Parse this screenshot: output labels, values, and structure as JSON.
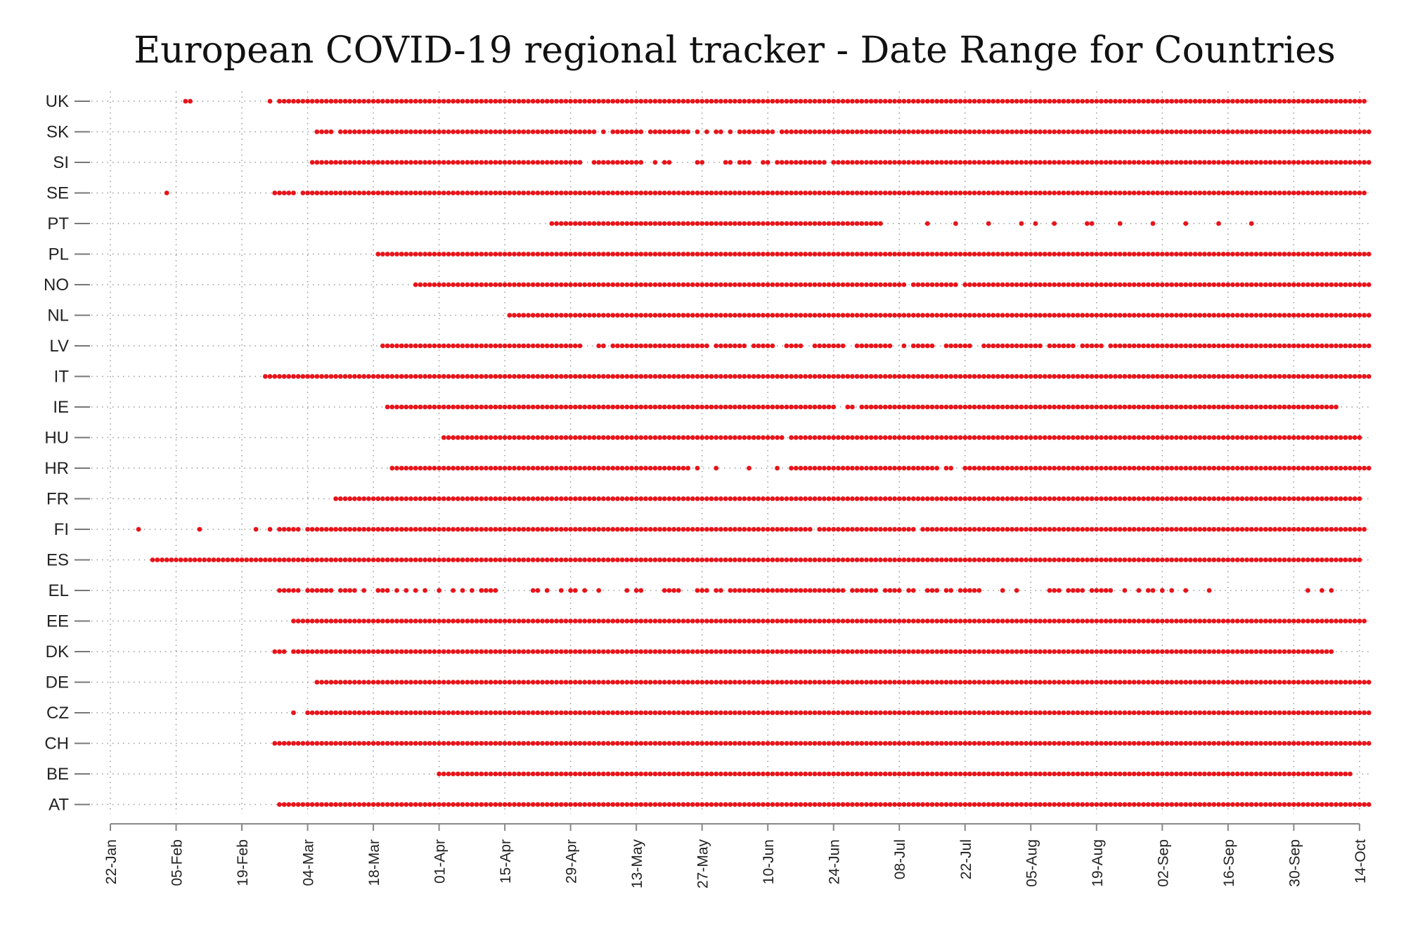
{
  "chart_data": {
    "type": "scatter",
    "title": "European COVID-19 regional tracker - Date Range for Countries",
    "xlabel": "",
    "ylabel": "",
    "x_axis": {
      "type": "date",
      "min": "2020-01-22",
      "max": "2020-10-14",
      "ticks": [
        "22-Jan",
        "05-Feb",
        "19-Feb",
        "04-Mar",
        "18-Mar",
        "01-Apr",
        "15-Apr",
        "29-Apr",
        "13-May",
        "27-May",
        "10-Jun",
        "24-Jun",
        "08-Jul",
        "22-Jul",
        "05-Aug",
        "19-Aug",
        "02-Sep",
        "16-Sep",
        "30-Sep",
        "14-Oct"
      ]
    },
    "grid": "dotted",
    "marker_color": "#e8141a",
    "categories": [
      "UK",
      "SK",
      "SI",
      "SE",
      "PT",
      "PL",
      "NO",
      "NL",
      "LV",
      "IT",
      "IE",
      "HU",
      "HR",
      "FR",
      "FI",
      "ES",
      "EL",
      "EE",
      "DK",
      "DE",
      "CZ",
      "CH",
      "BE",
      "AT"
    ],
    "series": [
      {
        "country": "UK",
        "ranges": [
          [
            "2020-02-07",
            "2020-02-08"
          ],
          [
            "2020-02-25",
            "2020-02-25"
          ],
          [
            "2020-02-27",
            "2020-10-15"
          ]
        ]
      },
      {
        "country": "SK",
        "ranges": [
          [
            "2020-03-06",
            "2020-03-09"
          ],
          [
            "2020-03-11",
            "2020-05-04"
          ],
          [
            "2020-05-06",
            "2020-05-06"
          ],
          [
            "2020-05-08",
            "2020-05-14"
          ],
          [
            "2020-05-16",
            "2020-05-24"
          ],
          [
            "2020-05-26",
            "2020-05-26"
          ],
          [
            "2020-05-28",
            "2020-05-28"
          ],
          [
            "2020-05-30",
            "2020-05-31"
          ],
          [
            "2020-06-02",
            "2020-06-02"
          ],
          [
            "2020-06-04",
            "2020-06-11"
          ],
          [
            "2020-06-13",
            "2020-10-16"
          ]
        ]
      },
      {
        "country": "SI",
        "ranges": [
          [
            "2020-03-05",
            "2020-05-01"
          ],
          [
            "2020-05-04",
            "2020-05-14"
          ],
          [
            "2020-05-17",
            "2020-05-17"
          ],
          [
            "2020-05-19",
            "2020-05-20"
          ],
          [
            "2020-05-26",
            "2020-05-27"
          ],
          [
            "2020-06-01",
            "2020-06-02"
          ],
          [
            "2020-06-04",
            "2020-06-06"
          ],
          [
            "2020-06-09",
            "2020-06-10"
          ],
          [
            "2020-06-12",
            "2020-06-22"
          ],
          [
            "2020-06-24",
            "2020-10-16"
          ]
        ]
      },
      {
        "country": "SE",
        "ranges": [
          [
            "2020-02-03",
            "2020-02-03"
          ],
          [
            "2020-02-26",
            "2020-03-01"
          ],
          [
            "2020-03-03",
            "2020-10-15"
          ]
        ]
      },
      {
        "country": "PT",
        "ranges": [
          [
            "2020-04-25",
            "2020-07-04"
          ],
          [
            "2020-07-14",
            "2020-07-14"
          ],
          [
            "2020-07-20",
            "2020-07-20"
          ],
          [
            "2020-07-27",
            "2020-07-27"
          ],
          [
            "2020-08-03",
            "2020-08-03"
          ],
          [
            "2020-08-06",
            "2020-08-06"
          ],
          [
            "2020-08-10",
            "2020-08-10"
          ],
          [
            "2020-08-17",
            "2020-08-18"
          ],
          [
            "2020-08-24",
            "2020-08-24"
          ],
          [
            "2020-08-31",
            "2020-08-31"
          ],
          [
            "2020-09-07",
            "2020-09-07"
          ],
          [
            "2020-09-14",
            "2020-09-14"
          ],
          [
            "2020-09-21",
            "2020-09-21"
          ]
        ]
      },
      {
        "country": "PL",
        "ranges": [
          [
            "2020-03-19",
            "2020-10-16"
          ]
        ]
      },
      {
        "country": "NO",
        "ranges": [
          [
            "2020-03-27",
            "2020-07-09"
          ],
          [
            "2020-07-11",
            "2020-07-20"
          ],
          [
            "2020-07-22",
            "2020-10-16"
          ]
        ]
      },
      {
        "country": "NL",
        "ranges": [
          [
            "2020-04-16",
            "2020-10-16"
          ]
        ]
      },
      {
        "country": "LV",
        "ranges": [
          [
            "2020-03-20",
            "2020-05-01"
          ],
          [
            "2020-05-05",
            "2020-05-06"
          ],
          [
            "2020-05-08",
            "2020-05-28"
          ],
          [
            "2020-05-30",
            "2020-06-05"
          ],
          [
            "2020-06-07",
            "2020-06-11"
          ],
          [
            "2020-06-14",
            "2020-06-17"
          ],
          [
            "2020-06-20",
            "2020-06-26"
          ],
          [
            "2020-06-29",
            "2020-07-06"
          ],
          [
            "2020-07-09",
            "2020-07-09"
          ],
          [
            "2020-07-11",
            "2020-07-15"
          ],
          [
            "2020-07-18",
            "2020-07-23"
          ],
          [
            "2020-07-26",
            "2020-08-07"
          ],
          [
            "2020-08-09",
            "2020-08-14"
          ],
          [
            "2020-08-16",
            "2020-08-20"
          ],
          [
            "2020-08-22",
            "2020-10-16"
          ]
        ]
      },
      {
        "country": "IT",
        "ranges": [
          [
            "2020-02-24",
            "2020-10-16"
          ]
        ]
      },
      {
        "country": "IE",
        "ranges": [
          [
            "2020-03-21",
            "2020-06-24"
          ],
          [
            "2020-06-27",
            "2020-06-28"
          ],
          [
            "2020-06-30",
            "2020-10-09"
          ]
        ]
      },
      {
        "country": "HU",
        "ranges": [
          [
            "2020-04-02",
            "2020-06-13"
          ],
          [
            "2020-06-15",
            "2020-10-14"
          ]
        ]
      },
      {
        "country": "HR",
        "ranges": [
          [
            "2020-03-22",
            "2020-05-24"
          ],
          [
            "2020-05-26",
            "2020-05-26"
          ],
          [
            "2020-05-30",
            "2020-05-30"
          ],
          [
            "2020-06-06",
            "2020-06-06"
          ],
          [
            "2020-06-12",
            "2020-06-12"
          ],
          [
            "2020-06-15",
            "2020-07-16"
          ],
          [
            "2020-07-18",
            "2020-07-19"
          ],
          [
            "2020-07-22",
            "2020-07-23"
          ],
          [
            "2020-07-24",
            "2020-10-16"
          ]
        ]
      },
      {
        "country": "FR",
        "ranges": [
          [
            "2020-03-10",
            "2020-10-14"
          ]
        ]
      },
      {
        "country": "FI",
        "ranges": [
          [
            "2020-01-28",
            "2020-01-28"
          ],
          [
            "2020-02-10",
            "2020-02-10"
          ],
          [
            "2020-02-22",
            "2020-02-22"
          ],
          [
            "2020-02-25",
            "2020-02-25"
          ],
          [
            "2020-02-27",
            "2020-03-02"
          ],
          [
            "2020-03-04",
            "2020-06-19"
          ],
          [
            "2020-06-21",
            "2020-07-11"
          ],
          [
            "2020-07-13",
            "2020-10-15"
          ]
        ]
      },
      {
        "country": "ES",
        "ranges": [
          [
            "2020-01-31",
            "2020-10-14"
          ]
        ]
      },
      {
        "country": "EL",
        "ranges": [
          [
            "2020-02-27",
            "2020-03-02"
          ],
          [
            "2020-03-04",
            "2020-03-09"
          ],
          [
            "2020-03-11",
            "2020-03-14"
          ],
          [
            "2020-03-16",
            "2020-03-16"
          ],
          [
            "2020-03-19",
            "2020-03-21"
          ],
          [
            "2020-03-23",
            "2020-03-23"
          ],
          [
            "2020-03-25",
            "2020-03-25"
          ],
          [
            "2020-03-27",
            "2020-03-27"
          ],
          [
            "2020-03-29",
            "2020-03-29"
          ],
          [
            "2020-04-01",
            "2020-04-01"
          ],
          [
            "2020-04-04",
            "2020-04-04"
          ],
          [
            "2020-04-06",
            "2020-04-06"
          ],
          [
            "2020-04-08",
            "2020-04-08"
          ],
          [
            "2020-04-10",
            "2020-04-13"
          ],
          [
            "2020-04-21",
            "2020-04-22"
          ],
          [
            "2020-04-24",
            "2020-04-24"
          ],
          [
            "2020-04-27",
            "2020-04-27"
          ],
          [
            "2020-04-29",
            "2020-04-30"
          ],
          [
            "2020-05-02",
            "2020-05-02"
          ],
          [
            "2020-05-05",
            "2020-05-05"
          ],
          [
            "2020-05-11",
            "2020-05-11"
          ],
          [
            "2020-05-13",
            "2020-05-14"
          ],
          [
            "2020-05-19",
            "2020-05-22"
          ],
          [
            "2020-05-26",
            "2020-05-28"
          ],
          [
            "2020-05-30",
            "2020-05-31"
          ],
          [
            "2020-06-02",
            "2020-06-26"
          ],
          [
            "2020-06-28",
            "2020-07-03"
          ],
          [
            "2020-07-05",
            "2020-07-08"
          ],
          [
            "2020-07-10",
            "2020-07-11"
          ],
          [
            "2020-07-14",
            "2020-07-16"
          ],
          [
            "2020-07-18",
            "2020-07-19"
          ],
          [
            "2020-07-21",
            "2020-07-25"
          ],
          [
            "2020-07-30",
            "2020-07-30"
          ],
          [
            "2020-08-02",
            "2020-08-02"
          ],
          [
            "2020-08-09",
            "2020-08-11"
          ],
          [
            "2020-08-13",
            "2020-08-16"
          ],
          [
            "2020-08-18",
            "2020-08-22"
          ],
          [
            "2020-08-25",
            "2020-08-25"
          ],
          [
            "2020-08-28",
            "2020-08-28"
          ],
          [
            "2020-08-30",
            "2020-08-31"
          ],
          [
            "2020-09-02",
            "2020-09-02"
          ],
          [
            "2020-09-04",
            "2020-09-04"
          ],
          [
            "2020-09-07",
            "2020-09-07"
          ],
          [
            "2020-09-12",
            "2020-09-12"
          ],
          [
            "2020-10-03",
            "2020-10-03"
          ],
          [
            "2020-10-06",
            "2020-10-06"
          ],
          [
            "2020-10-08",
            "2020-10-08"
          ]
        ]
      },
      {
        "country": "EE",
        "ranges": [
          [
            "2020-03-01",
            "2020-10-15"
          ]
        ]
      },
      {
        "country": "DK",
        "ranges": [
          [
            "2020-02-26",
            "2020-02-28"
          ],
          [
            "2020-03-01",
            "2020-10-08"
          ]
        ]
      },
      {
        "country": "DE",
        "ranges": [
          [
            "2020-03-06",
            "2020-10-16"
          ]
        ]
      },
      {
        "country": "CZ",
        "ranges": [
          [
            "2020-03-01",
            "2020-03-01"
          ],
          [
            "2020-03-04",
            "2020-10-16"
          ]
        ]
      },
      {
        "country": "CH",
        "ranges": [
          [
            "2020-02-26",
            "2020-10-16"
          ]
        ]
      },
      {
        "country": "BE",
        "ranges": [
          [
            "2020-04-01",
            "2020-10-12"
          ]
        ]
      },
      {
        "country": "AT",
        "ranges": [
          [
            "2020-02-27",
            "2020-10-16"
          ]
        ]
      }
    ]
  }
}
